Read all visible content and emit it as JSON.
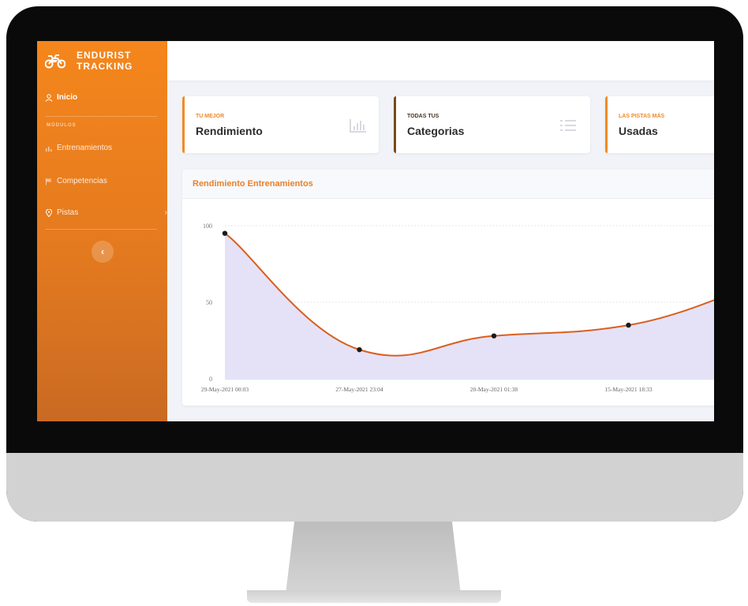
{
  "sidebar": {
    "brand_line1": "ENDURIST",
    "brand_line2": "TRACKING",
    "items": [
      {
        "label": "Inicio",
        "icon": "user-icon"
      },
      {
        "label": "Entrenamientos",
        "icon": "bar-chart-icon"
      },
      {
        "label": "Competencias",
        "icon": "flag-icon"
      },
      {
        "label": "Pistas",
        "icon": "map-pin-icon"
      }
    ],
    "section_heading": "MÓDULOS",
    "pistas_chevron": "›",
    "collapse_label": "‹"
  },
  "cards": [
    {
      "small": "TU MEJOR",
      "big": "Rendimiento",
      "accent": "#f28a24",
      "small_color": "#f28a24",
      "icon": "bar-chart-icon"
    },
    {
      "small": "TODAS TUS",
      "big": "Categorias",
      "accent": "#7a4a1e",
      "small_color": "#7a4a1e",
      "icon": "list-icon"
    },
    {
      "small": "LAS PISTAS MÁS",
      "big": "Usadas",
      "accent": "#f28a24",
      "small_color": "#f28a24",
      "icon": "map-icon"
    }
  ],
  "chart": {
    "title": "Rendimiento Entrenamientos"
  },
  "chart_data": {
    "type": "area",
    "categories": [
      "29-May-2021 00:03",
      "27-May-2021 23:04",
      "20-May-2021 01:38",
      "15-May-2021 18:33"
    ],
    "values": [
      95,
      19,
      28,
      35
    ],
    "y_ticks": [
      0,
      50,
      100
    ],
    "ylim": [
      0,
      100
    ],
    "line_color": "#d95f1e",
    "fill_color": "#e5e2f8",
    "grid": true
  },
  "colors": {
    "primary": "#f5861c",
    "chart_title": "#e8812b"
  }
}
